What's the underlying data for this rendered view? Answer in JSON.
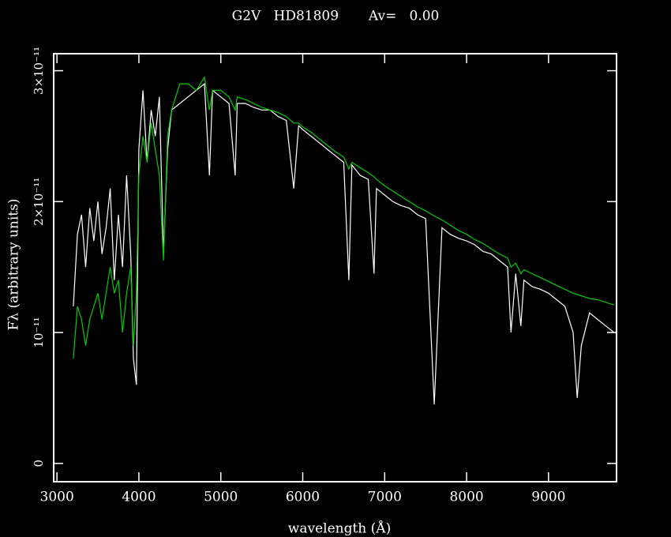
{
  "chart_data": {
    "type": "line",
    "title": "G2V   HD81809       Av=   0.00",
    "x_label": "wavelength (Å)",
    "y_label": "Fλ (arbitrary units)",
    "xlim": [
      2960,
      9830
    ],
    "ylim": [
      -1.4e-12,
      3.13e-11
    ],
    "xticks": [
      3000,
      4000,
      5000,
      6000,
      7000,
      8000,
      9000
    ],
    "yticks": [
      0,
      {
        "value": 1e-11,
        "label": "10⁻¹¹"
      },
      {
        "value": 2e-11,
        "label": "2×10⁻¹¹"
      },
      {
        "value": 3e-11,
        "label": "3×10⁻¹¹"
      }
    ],
    "x": [
      3200,
      3250,
      3300,
      3350,
      3400,
      3450,
      3500,
      3550,
      3600,
      3650,
      3700,
      3750,
      3800,
      3850,
      3900,
      3933,
      3970,
      4000,
      4050,
      4100,
      4150,
      4200,
      4250,
      4300,
      4350,
      4400,
      4500,
      4600,
      4700,
      4800,
      4861,
      4900,
      5000,
      5100,
      5175,
      5200,
      5300,
      5400,
      5500,
      5600,
      5700,
      5800,
      5890,
      5950,
      6000,
      6100,
      6200,
      6300,
      6400,
      6500,
      6563,
      6600,
      6700,
      6800,
      6870,
      6900,
      7000,
      7100,
      7200,
      7300,
      7400,
      7500,
      7605,
      7700,
      7800,
      7900,
      8000,
      8100,
      8200,
      8300,
      8400,
      8500,
      8542,
      8600,
      8662,
      8700,
      8800,
      8900,
      9000,
      9100,
      9200,
      9300,
      9350,
      9400,
      9500,
      9600,
      9700,
      9800
    ],
    "series": [
      {
        "color": "#ffffff",
        "values": [
          1.2e-11,
          1.75e-11,
          1.9e-11,
          1.5e-11,
          1.95e-11,
          1.7e-11,
          2e-11,
          1.6e-11,
          1.8e-11,
          2.1e-11,
          1.4e-11,
          1.9e-11,
          1.5e-11,
          2.2e-11,
          1.6e-11,
          8e-12,
          6e-12,
          2.4e-11,
          2.85e-11,
          2.3e-11,
          2.7e-11,
          2.5e-11,
          2.8e-11,
          1.6e-11,
          2.4e-11,
          2.7e-11,
          2.75e-11,
          2.8e-11,
          2.85e-11,
          2.9e-11,
          2.2e-11,
          2.85e-11,
          2.8e-11,
          2.75e-11,
          2.2e-11,
          2.75e-11,
          2.75e-11,
          2.72e-11,
          2.7e-11,
          2.7e-11,
          2.65e-11,
          2.62e-11,
          2.1e-11,
          2.58e-11,
          2.55e-11,
          2.5e-11,
          2.45e-11,
          2.4e-11,
          2.35e-11,
          2.3e-11,
          1.4e-11,
          2.28e-11,
          2.2e-11,
          2.17e-11,
          1.45e-11,
          2.1e-11,
          2.05e-11,
          2e-11,
          1.97e-11,
          1.95e-11,
          1.9e-11,
          1.87e-11,
          4.5e-12,
          1.8e-11,
          1.75e-11,
          1.72e-11,
          1.7e-11,
          1.67e-11,
          1.62e-11,
          1.6e-11,
          1.55e-11,
          1.5e-11,
          1e-11,
          1.45e-11,
          1.05e-11,
          1.4e-11,
          1.35e-11,
          1.33e-11,
          1.3e-11,
          1.25e-11,
          1.2e-11,
          1e-11,
          5e-12,
          9e-12,
          1.15e-11,
          1.1e-11,
          1.05e-11,
          1e-11
        ]
      },
      {
        "color": "#00cc00",
        "values": [
          8e-12,
          1.2e-11,
          1.1e-11,
          9e-12,
          1.1e-11,
          1.2e-11,
          1.3e-11,
          1.1e-11,
          1.3e-11,
          1.5e-11,
          1.3e-11,
          1.4e-11,
          1e-11,
          1.3e-11,
          1.5e-11,
          9e-12,
          1.3e-11,
          2.2e-11,
          2.5e-11,
          2.3e-11,
          2.6e-11,
          2.4e-11,
          2.2e-11,
          1.55e-11,
          2.5e-11,
          2.7e-11,
          2.9e-11,
          2.9e-11,
          2.85e-11,
          2.95e-11,
          2.7e-11,
          2.85e-11,
          2.85e-11,
          2.8e-11,
          2.7e-11,
          2.8e-11,
          2.78e-11,
          2.75e-11,
          2.72e-11,
          2.7e-11,
          2.68e-11,
          2.65e-11,
          2.6e-11,
          2.6e-11,
          2.57e-11,
          2.53e-11,
          2.48e-11,
          2.43e-11,
          2.38e-11,
          2.34e-11,
          2.25e-11,
          2.3e-11,
          2.26e-11,
          2.22e-11,
          2.19e-11,
          2.17e-11,
          2.12e-11,
          2.08e-11,
          2.04e-11,
          2e-11,
          1.96e-11,
          1.93e-11,
          1.89e-11,
          1.86e-11,
          1.82e-11,
          1.78e-11,
          1.75e-11,
          1.71e-11,
          1.68e-11,
          1.64e-11,
          1.6e-11,
          1.57e-11,
          1.5e-11,
          1.53e-11,
          1.45e-11,
          1.48e-11,
          1.45e-11,
          1.42e-11,
          1.39e-11,
          1.36e-11,
          1.33e-11,
          1.3e-11,
          1.29e-11,
          1.28e-11,
          1.26e-11,
          1.25e-11,
          1.23e-11,
          1.21e-11
        ]
      }
    ]
  }
}
